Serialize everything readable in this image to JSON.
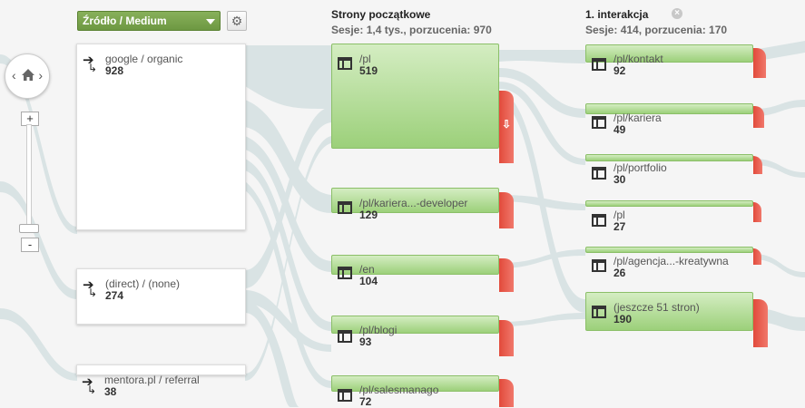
{
  "dimension": {
    "selected": "Źródło / Medium"
  },
  "settings_icon": "gear-icon",
  "zoom": {
    "plus": "+",
    "minus": "-"
  },
  "nav": {
    "left": "‹",
    "right": "›",
    "home_icon": "home-icon"
  },
  "columns": [
    {
      "title": "Strony początkowe",
      "stats": "Sesje: 1,4 tys., porzucenia: 970"
    },
    {
      "title": "1. interakcja",
      "stats": "Sesje: 414, porzucenia: 170",
      "close": "×"
    }
  ],
  "sources": [
    {
      "name": "google / organic",
      "value": "928"
    },
    {
      "name": "(direct) / (none)",
      "value": "274"
    },
    {
      "name": "mentora.pl / referral",
      "value": "38"
    }
  ],
  "landing_pages": [
    {
      "name": "/pl",
      "value": "519"
    },
    {
      "name": "/pl/kariera...-developer",
      "value": "129"
    },
    {
      "name": "/en",
      "value": "104"
    },
    {
      "name": "/pl/blogi",
      "value": "93"
    },
    {
      "name": "/pl/salesmanago",
      "value": "72"
    }
  ],
  "first_interaction": [
    {
      "name": "/pl/kontakt",
      "value": "92"
    },
    {
      "name": "/pl/kariera",
      "value": "49"
    },
    {
      "name": "/pl/portfolio",
      "value": "30"
    },
    {
      "name": "/pl",
      "value": "27"
    },
    {
      "name": "/pl/agencja...-kreatywna",
      "value": "26"
    },
    {
      "name": "(jeszcze 51 stron)",
      "value": "190"
    }
  ],
  "colors": {
    "node_green": "#9cd07a",
    "drop_red": "#e24a3b",
    "flow": "#d3dfe0",
    "dropdown": "#6d9842"
  }
}
